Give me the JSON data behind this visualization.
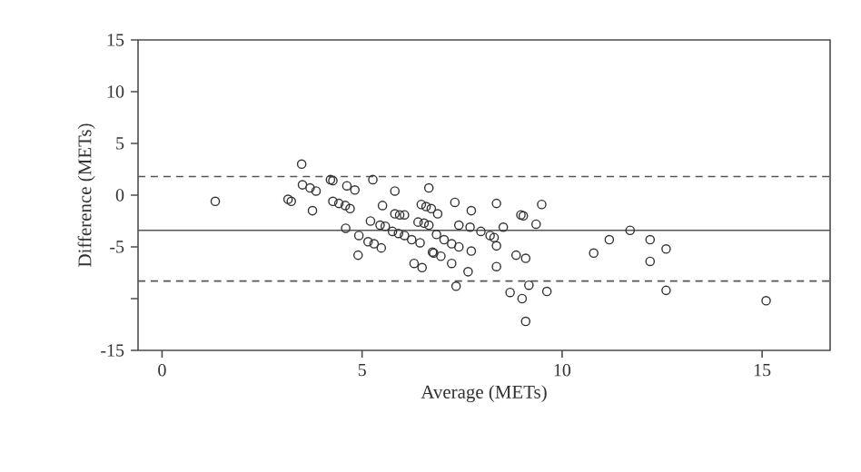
{
  "chart_data": {
    "type": "scatter",
    "xlabel": "Average (METs)",
    "ylabel": "Difference (METs)",
    "xlim": [
      -0.6,
      16.7
    ],
    "ylim": [
      -15,
      15
    ],
    "xticks": [
      0,
      5,
      10,
      15
    ],
    "yticks": [
      -15,
      {
        "value": -10,
        "label": null
      },
      -5,
      0,
      5,
      10,
      15
    ],
    "grid": false,
    "marker": "circle",
    "ref_lines": [
      {
        "axis": "y",
        "value": 1.8,
        "line_style": "dashed",
        "color": "#555555"
      },
      {
        "axis": "y",
        "value": -3.4,
        "line_style": "solid",
        "color": "#555555"
      },
      {
        "axis": "y",
        "value": -8.3,
        "line_style": "dashed",
        "color": "#555555"
      }
    ],
    "series": [
      {
        "color": "#333333",
        "x": [
          1.33,
          3.49,
          3.51,
          3.7,
          3.85,
          3.15,
          3.23,
          3.76,
          4.21,
          4.27,
          4.62,
          4.82,
          5.27,
          4.27,
          4.42,
          4.58,
          4.7,
          4.59,
          4.92,
          5.15,
          5.3,
          5.48,
          4.9,
          5.82,
          5.51,
          5.21,
          5.45,
          5.58,
          5.82,
          5.94,
          6.06,
          5.76,
          5.91,
          6.06,
          6.24,
          6.45,
          6.3,
          6.5,
          6.4,
          6.55,
          6.67,
          6.67,
          6.48,
          6.6,
          6.73,
          6.76,
          6.89,
          7.32,
          7.73,
          8.36,
          8.97,
          9.03,
          9.49,
          9.35,
          8.53,
          7.42,
          7.7,
          7.97,
          8.2,
          8.3,
          6.86,
          7.05,
          7.24,
          7.42,
          7.73,
          6.79,
          6.97,
          7.24,
          7.35,
          7.65,
          8.36,
          8.36,
          8.85,
          9.09,
          8.7,
          9.0,
          9.17,
          9.62,
          9.09,
          10.79,
          11.18,
          11.7,
          12.2,
          12.6,
          12.2,
          12.6,
          15.1
        ],
        "values": [
          -0.6,
          3.0,
          1.0,
          0.7,
          0.4,
          -0.4,
          -0.6,
          -1.5,
          1.5,
          1.4,
          0.9,
          0.5,
          1.5,
          -0.6,
          -0.8,
          -1.0,
          -1.3,
          -3.2,
          -3.9,
          -4.5,
          -4.7,
          -5.1,
          -5.8,
          0.4,
          -1.0,
          -2.5,
          -2.9,
          -3.0,
          -1.8,
          -1.9,
          -1.9,
          -3.5,
          -3.7,
          -3.9,
          -4.3,
          -4.6,
          -6.6,
          -7.0,
          -2.6,
          -2.7,
          -2.9,
          0.7,
          -0.9,
          -1.1,
          -1.3,
          -5.5,
          -1.8,
          -0.7,
          -1.5,
          -0.8,
          -1.9,
          -2.0,
          -0.9,
          -2.8,
          -3.1,
          -2.9,
          -3.1,
          -3.5,
          -3.9,
          -4.1,
          -3.8,
          -4.3,
          -4.7,
          -5.0,
          -5.4,
          -5.6,
          -5.9,
          -6.6,
          -8.8,
          -7.4,
          -4.9,
          -6.9,
          -5.8,
          -6.1,
          -9.4,
          -10.0,
          -8.7,
          -9.3,
          -12.2,
          -5.6,
          -4.3,
          -3.4,
          -4.3,
          -5.2,
          -6.4,
          -9.2,
          -10.2
        ]
      }
    ]
  }
}
